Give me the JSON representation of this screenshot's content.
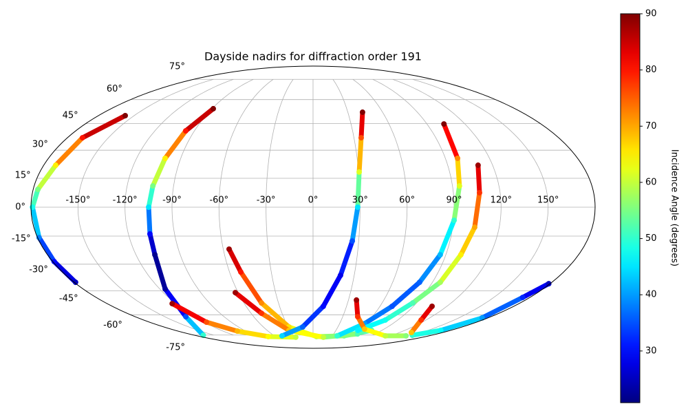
{
  "chart_data": {
    "type": "scatter",
    "projection": "mollweide",
    "title": "Dayside nadirs for diffraction order 191",
    "colorbar_label": "Incidence Angle (degrees)",
    "colormap": "jet",
    "clim": [
      20.8,
      90
    ],
    "cticks": [
      30,
      40,
      50,
      60,
      70,
      80,
      90
    ],
    "xlim": [
      -180,
      180
    ],
    "ylim": [
      -90,
      90
    ],
    "grid": true,
    "xticks": [
      {
        "value": -150,
        "label": "-150°"
      },
      {
        "value": -120,
        "label": "-120°"
      },
      {
        "value": -90,
        "label": "-90°"
      },
      {
        "value": -60,
        "label": "-60°"
      },
      {
        "value": -30,
        "label": "-30°"
      },
      {
        "value": 0,
        "label": "0°"
      },
      {
        "value": 30,
        "label": "30°"
      },
      {
        "value": 60,
        "label": "60°"
      },
      {
        "value": 90,
        "label": "90°"
      },
      {
        "value": 120,
        "label": "120°"
      },
      {
        "value": 150,
        "label": "150°"
      }
    ],
    "yticks": [
      {
        "value": -75,
        "label": "-75°"
      },
      {
        "value": -60,
        "label": "-60°"
      },
      {
        "value": -45,
        "label": "-45°"
      },
      {
        "value": -30,
        "label": "-30°"
      },
      {
        "value": -15,
        "label": "-15°"
      },
      {
        "value": 0,
        "label": "0°"
      },
      {
        "value": 15,
        "label": "15°"
      },
      {
        "value": 30,
        "label": "30°"
      },
      {
        "value": 45,
        "label": "45°"
      },
      {
        "value": 60,
        "label": "60°"
      },
      {
        "value": 75,
        "label": "75°"
      }
    ],
    "series": [
      {
        "x": [
          -157.5,
          -169,
          -172,
          -177,
          -179,
          -179,
          -179,
          -179
        ],
        "y": [
          49.8,
          36.9,
          21.9,
          9.2,
          0,
          -15.8,
          -28.6,
          -40.1
        ],
        "c": [
          90,
          80,
          65,
          55,
          48,
          38,
          30,
          25
        ]
      },
      {
        "x": [
          179,
          174,
          174,
          167,
          151
        ],
        "y": [
          -40.9,
          -49,
          -62.1,
          -71.2,
          -75.2
        ],
        "c": [
          25,
          32,
          40,
          47,
          50
        ]
      },
      {
        "x": [
          -88.9,
          -96.6,
          -100.6,
          -103.4,
          -104.9,
          -106,
          -107.2,
          -115.8,
          -128.7,
          -166.9
        ],
        "y": [
          54.1,
          40.8,
          25.6,
          11.0,
          0,
          -13.9,
          -24.9,
          -44.0,
          -61.3,
          -75.2
        ],
        "c": [
          90,
          80,
          65,
          55,
          45,
          30,
          22,
          23,
          35,
          50
        ]
      },
      {
        "x": [
          -123.1,
          -117.3,
          -101.0,
          -71.5,
          -28.4
        ],
        "y": [
          -52.8,
          -65.1,
          -71.8,
          -76.3,
          -76.9
        ],
        "c": [
          88,
          76,
          69,
          64,
          60
        ]
      },
      {
        "x": [
          -56.1,
          -51.9,
          -44.8,
          -29.1,
          5.5,
          48.2,
          76.6
        ],
        "y": [
          -21.9,
          -34.3,
          -52.4,
          -68.6,
          -76.3,
          -75.7,
          -71.2
        ],
        "c": [
          88,
          80,
          72,
          66,
          60,
          55,
          50
        ]
      },
      {
        "x": [
          -62.3,
          -49.9,
          -31.5,
          17.0,
          64.7
        ],
        "y": [
          -46.1,
          -59.0,
          -71.2,
          -76.9,
          -74.1
        ],
        "c": [
          88,
          78,
          68,
          60,
          52
        ]
      },
      {
        "x": [
          42.7,
          35.3,
          30.4,
          28.5,
          25.8,
          20.0,
          9.2,
          -12.5,
          -48.2
        ],
        "y": [
          51.9,
          36.9,
          18.3,
          0,
          -17.6,
          -36.2,
          -54.5,
          -68.6,
          -75.7
        ],
        "c": [
          90,
          76,
          62,
          45,
          35,
          28,
          30,
          36,
          44
        ]
      },
      {
        "x": [
          103.4,
          98.3,
          94.5,
          90.4,
          86.2,
          80.3,
          70.9,
          58.2,
          37.5
        ],
        "y": [
          44.8,
          25.6,
          11.0,
          -6.8,
          -24.9,
          -40.1,
          -54.5,
          -66.1,
          -75.7
        ],
        "c": [
          90,
          72,
          62,
          50,
          42,
          36,
          35,
          40,
          50
        ]
      },
      {
        "x": [
          110.3,
          106.8,
          104.2,
          100.2,
          95.9,
          86.6,
          76.8,
          58.6
        ],
        "y": [
          21.9,
          7.5,
          -10.4,
          -24.9,
          -40.1,
          -52.4,
          -63.6,
          -71.2
        ],
        "c": [
          88,
          78,
          70,
          65,
          58,
          52,
          48,
          46
        ]
      },
      {
        "x": [
          36.8,
          45.2,
          65.2,
          112.4,
          144.5
        ],
        "y": [
          -50.6,
          -61.3,
          -70.2,
          -75.7,
          -75.7
        ],
        "c": [
          88,
          78,
          68,
          60,
          56
        ]
      },
      {
        "x": [
          106.7,
          114.9,
          136.5
        ],
        "y": [
          -54.5,
          -63.6,
          -72.9
        ],
        "c": [
          88,
          78,
          68
        ]
      }
    ]
  }
}
